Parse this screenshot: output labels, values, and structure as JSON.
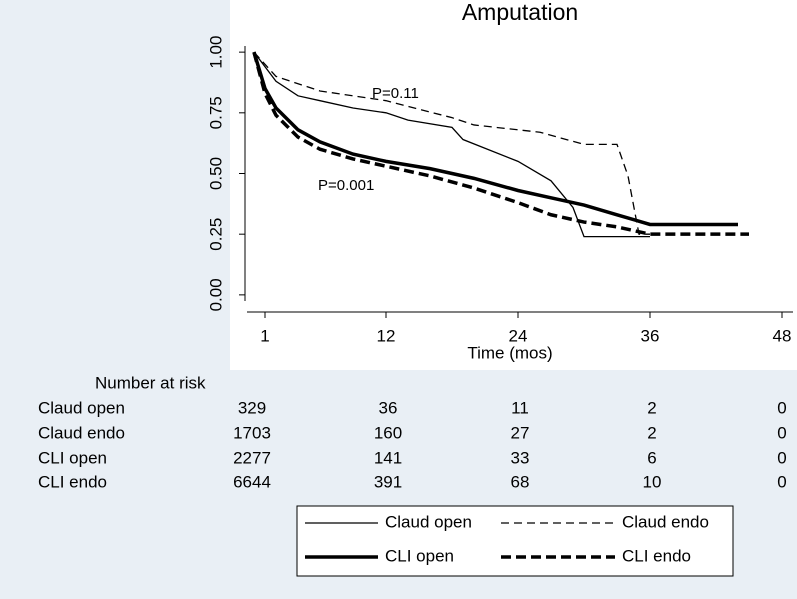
{
  "chart_data": {
    "type": "line",
    "title": "Amputation",
    "x_label": "Time (mos)",
    "xlim": [
      -1,
      49
    ],
    "xticks": [
      1,
      12,
      24,
      36,
      48
    ],
    "ylim": [
      -0.05,
      1.05
    ],
    "yticks": [
      {
        "value": 0,
        "label": "0.00"
      },
      0.25,
      {
        "value": 0.5,
        "label": "0.50"
      },
      0.75,
      {
        "value": 1,
        "label": "1.00"
      }
    ],
    "series": [
      {
        "name": "Claud open",
        "color": "#000000",
        "style": "solid",
        "weight": "thin",
        "x": [
          0,
          2,
          4,
          6,
          9,
          12,
          14,
          18,
          19,
          24,
          27,
          29,
          30,
          36
        ],
        "values": [
          1.0,
          0.88,
          0.82,
          0.8,
          0.77,
          0.75,
          0.72,
          0.69,
          0.64,
          0.55,
          0.47,
          0.36,
          0.24,
          0.24
        ]
      },
      {
        "name": "Claud endo",
        "color": "#000000",
        "style": "dashed",
        "weight": "thin",
        "x": [
          0,
          2,
          6,
          12,
          18,
          20,
          26,
          30,
          33,
          34,
          35,
          36
        ],
        "values": [
          1.0,
          0.9,
          0.84,
          0.8,
          0.73,
          0.7,
          0.67,
          0.62,
          0.62,
          0.49,
          0.25,
          0.25
        ]
      },
      {
        "name": "CLI open",
        "color": "#000000",
        "style": "solid",
        "weight": "thick",
        "x": [
          0,
          1,
          2,
          4,
          6,
          9,
          12,
          16,
          20,
          24,
          27,
          30,
          33,
          36,
          44
        ],
        "values": [
          1.0,
          0.85,
          0.77,
          0.68,
          0.63,
          0.58,
          0.55,
          0.52,
          0.48,
          0.43,
          0.4,
          0.37,
          0.33,
          0.29,
          0.29
        ]
      },
      {
        "name": "CLI endo",
        "color": "#000000",
        "style": "dashed",
        "weight": "thick",
        "x": [
          0,
          1,
          2,
          4,
          6,
          9,
          12,
          16,
          20,
          24,
          27,
          30,
          33,
          36,
          45
        ],
        "values": [
          1.0,
          0.83,
          0.74,
          0.65,
          0.6,
          0.56,
          0.53,
          0.49,
          0.44,
          0.38,
          0.33,
          0.3,
          0.28,
          0.25,
          0.25
        ]
      }
    ],
    "annotations": [
      "P=0.11",
      "P=0.001"
    ]
  },
  "risk_table": {
    "title": "Number at risk",
    "rows": [
      {
        "label": "Claud open",
        "values": [
          329,
          36,
          11,
          2,
          0
        ]
      },
      {
        "label": "Claud endo",
        "values": [
          1703,
          160,
          27,
          2,
          0
        ]
      },
      {
        "label": "CLI open",
        "values": [
          2277,
          141,
          33,
          6,
          0
        ]
      },
      {
        "label": "CLI endo",
        "values": [
          6644,
          391,
          68,
          10,
          0
        ]
      }
    ]
  }
}
